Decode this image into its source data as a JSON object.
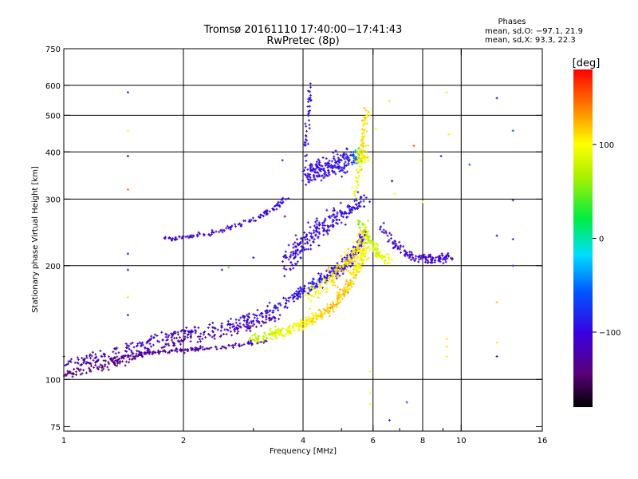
{
  "chart_data": {
    "type": "scatter",
    "title": "Tromsø 20161110 17:40:00−17:41:43",
    "subtitle": "RwPretec (8p)",
    "xlabel": "Frequency [MHz]",
    "ylabel": "Stationary phase Virtual Height [km]",
    "x_scale": "log",
    "y_scale": "log",
    "xlim": [
      1,
      16
    ],
    "ylim": [
      73,
      750
    ],
    "x_ticks": [
      1,
      2,
      4,
      6,
      8,
      10,
      16
    ],
    "x_tick_labels": [
      "1",
      "2",
      "4",
      "6",
      "8",
      "10",
      "16"
    ],
    "x_grid": [
      2,
      4,
      6,
      8,
      10
    ],
    "x_minor": [
      3,
      5,
      7,
      9
    ],
    "y_ticks": [
      75,
      100,
      200,
      300,
      400,
      500,
      600,
      750
    ],
    "y_tick_labels": [
      "75",
      "100",
      "200",
      "300",
      "400",
      "500",
      "600",
      "750"
    ],
    "y_grid": [
      100,
      200,
      300,
      400,
      500,
      600
    ],
    "grid": true,
    "legend_title": "Phases",
    "legend_lines": [
      "mean, sd,O: −97.1, 21.9",
      "mean, sd,X:  93.3, 22.3"
    ],
    "legend_placement": "top-right",
    "colorbar": {
      "label": "[deg]",
      "min": -180,
      "max": 180,
      "ticks": [
        100,
        0,
        -100
      ],
      "tick_labels": [
        "100",
        "0",
        "−100"
      ]
    },
    "series": [
      {
        "traces": [
          {
            "f": [
              1.0,
              1.1,
              1.2,
              1.35,
              1.5,
              1.7,
              1.9,
              2.1,
              2.4,
              2.7,
              3.0,
              3.3,
              3.6,
              3.9,
              4.1,
              4.3,
              4.5,
              4.7,
              4.9,
              5.1,
              5.3,
              5.5,
              5.7
            ],
            "h": [
              112,
              113,
              115,
              118,
              122,
              127,
              131,
              134,
              137,
              141,
              146,
              152,
              160,
              168,
              174,
              180,
              186,
              190,
              195,
              200,
              210,
              225,
              245
            ],
            "phase": [
              -120,
              -120,
              -120,
              -120,
              -118,
              -115,
              -112,
              -110,
              -108,
              -106,
              -104,
              -100,
              -98,
              -95,
              -92,
              -88,
              -90,
              -92,
              -93,
              -95,
              -95,
              -95,
              -95
            ],
            "n": 480,
            "sx": 0.02,
            "sy": 0.025
          },
          {
            "f": [
              1.0,
              1.1,
              1.25,
              1.4,
              1.6,
              1.8,
              2.0,
              2.3,
              2.6,
              2.9,
              3.2,
              3.5
            ],
            "h": [
              103,
              105,
              108,
              112,
              118,
              123,
              127,
              130,
              134,
              138,
              143,
              148
            ],
            "phase": [
              -140,
              -140,
              -138,
              -136,
              -132,
              -128,
              -125,
              -122,
              -120,
              -118,
              -115,
              -112
            ],
            "n": 220,
            "sx": 0.02,
            "sy": 0.02
          },
          {
            "f": [
              1.1,
              1.3,
              1.5,
              1.7,
              1.9,
              2.1,
              2.3,
              2.6,
              2.9,
              3.2
            ],
            "h": [
              110,
              113,
              116,
              118,
              119,
              120,
              121,
              122,
              124,
              126
            ],
            "phase": [
              -135,
              -135,
              -134,
              -132,
              -130,
              -128,
              -126,
              -124,
              -120,
              -115
            ],
            "n": 160,
            "sx": 0.02,
            "sy": 0.01
          },
          {
            "f": [
              3.0,
              3.3,
              3.6,
              3.9,
              4.2,
              4.5,
              4.8,
              5.0,
              5.2,
              5.4,
              5.6,
              5.75
            ],
            "h": [
              128,
              131,
              134,
              138,
              143,
              150,
              158,
              168,
              178,
              190,
              205,
              220
            ],
            "phase": [
              70,
              80,
              90,
              100,
              110,
              115,
              118,
              120,
              115,
              110,
              105,
              100
            ],
            "n": 380,
            "sx": 0.02,
            "sy": 0.025
          },
          {
            "f": [
              4.1,
              4.4,
              4.7,
              5.0,
              5.3,
              5.6,
              5.8
            ],
            "h": [
              165,
              175,
              185,
              195,
              210,
              230,
              250
            ],
            "phase": [
              90,
              100,
              110,
              115,
              110,
              105,
              100
            ],
            "n": 180,
            "sx": 0.025,
            "sy": 0.04
          },
          {
            "f": [
              3.6,
              3.8,
              4.0,
              4.3,
              4.6,
              4.9,
              5.2,
              5.5,
              5.7
            ],
            "h": [
              200,
              215,
              230,
              245,
              260,
              270,
              280,
              290,
              300
            ],
            "phase": [
              -100,
              -100,
              -98,
              -98,
              -98,
              -95,
              -95,
              -95,
              -95
            ],
            "n": 240,
            "sx": 0.03,
            "sy": 0.05
          },
          {
            "f": [
              1.8,
              2.0,
              2.2,
              2.5,
              2.8,
              3.1,
              3.4,
              3.7
            ],
            "h": [
              236,
              238,
              241,
              248,
              258,
              270,
              285,
              305
            ],
            "phase": [
              -110,
              -110,
              -108,
              -106,
              -104,
              -102,
              -100,
              -98
            ],
            "n": 120,
            "sx": 0.01,
            "sy": 0.012
          },
          {
            "f": [
              4.0,
              4.2,
              4.4,
              4.6,
              4.8,
              5.0,
              5.2,
              5.4,
              5.6,
              5.8
            ],
            "h": [
              350,
              355,
              360,
              365,
              370,
              375,
              380,
              385,
              390,
              400
            ],
            "phase": [
              -100,
              -100,
              -98,
              -98,
              -95,
              -92,
              -90,
              -60,
              100,
              110
            ],
            "n": 260,
            "sx": 0.02,
            "sy": 0.05
          },
          {
            "f": [
              4.05,
              4.1,
              4.15,
              4.2
            ],
            "h": [
              400,
              460,
              530,
              600
            ],
            "phase": [
              -95,
              -95,
              -95,
              -90
            ],
            "n": 40,
            "sx": 0.01,
            "sy": 0.05
          },
          {
            "f": [
              5.4,
              5.55,
              5.7,
              5.8
            ],
            "h": [
              300,
              380,
              450,
              520
            ],
            "phase": [
              100,
              105,
              108,
              110
            ],
            "n": 80,
            "sx": 0.015,
            "sy": 0.06
          },
          {
            "f": [
              5.5,
              5.8,
              6.0,
              6.3,
              6.6
            ],
            "h": [
              260,
              240,
              225,
              212,
              206
            ],
            "phase": [
              60,
              70,
              80,
              95,
              105
            ],
            "n": 90,
            "sx": 0.015,
            "sy": 0.03
          },
          {
            "f": [
              6.3,
              6.6,
              6.9,
              7.3,
              7.7,
              8.1,
              8.5,
              9.0,
              9.4
            ],
            "h": [
              255,
              238,
              225,
              215,
              210,
              208,
              208,
              210,
              212
            ],
            "phase": [
              -100,
              -105,
              -110,
              -110,
              -110,
              -110,
              -108,
              -106,
              -105
            ],
            "n": 140,
            "sx": 0.015,
            "sy": 0.02
          }
        ],
        "sparse": [
          {
            "f": 1.45,
            "h": 575,
            "phase": -110
          },
          {
            "f": 1.45,
            "h": 455,
            "phase": 100
          },
          {
            "f": 1.45,
            "h": 390,
            "phase": -150
          },
          {
            "f": 1.45,
            "h": 318,
            "phase": 150
          },
          {
            "f": 1.45,
            "h": 215,
            "phase": -110
          },
          {
            "f": 1.45,
            "h": 195,
            "phase": -120
          },
          {
            "f": 1.45,
            "h": 165,
            "phase": 80
          },
          {
            "f": 1.45,
            "h": 148,
            "phase": -130
          },
          {
            "f": 6.0,
            "h": 200,
            "phase": -100
          },
          {
            "f": 6.1,
            "h": 460,
            "phase": 100
          },
          {
            "f": 6.6,
            "h": 545,
            "phase": 110
          },
          {
            "f": 6.7,
            "h": 335,
            "phase": -170
          },
          {
            "f": 6.8,
            "h": 310,
            "phase": 100
          },
          {
            "f": 7.6,
            "h": 415,
            "phase": 150
          },
          {
            "f": 7.9,
            "h": 380,
            "phase": 100
          },
          {
            "f": 8.0,
            "h": 295,
            "phase": 100
          },
          {
            "f": 8.9,
            "h": 390,
            "phase": -90
          },
          {
            "f": 9.3,
            "h": 445,
            "phase": 100
          },
          {
            "f": 9.2,
            "h": 575,
            "phase": 110
          },
          {
            "f": 9.2,
            "h": 128,
            "phase": 110
          },
          {
            "f": 9.2,
            "h": 122,
            "phase": 110
          },
          {
            "f": 9.2,
            "h": 115,
            "phase": 105
          },
          {
            "f": 10.5,
            "h": 370,
            "phase": -60
          },
          {
            "f": 12.3,
            "h": 555,
            "phase": -120
          },
          {
            "f": 12.3,
            "h": 240,
            "phase": -110
          },
          {
            "f": 12.3,
            "h": 160,
            "phase": 120
          },
          {
            "f": 12.3,
            "h": 125,
            "phase": 110
          },
          {
            "f": 12.3,
            "h": 115,
            "phase": -120
          },
          {
            "f": 13.5,
            "h": 455,
            "phase": -60
          },
          {
            "f": 13.5,
            "h": 298,
            "phase": -130
          },
          {
            "f": 13.5,
            "h": 235,
            "phase": -90
          },
          {
            "f": 13.5,
            "h": 200,
            "phase": -70
          },
          {
            "f": 5.9,
            "h": 105,
            "phase": 100
          },
          {
            "f": 5.9,
            "h": 92,
            "phase": 100
          },
          {
            "f": 5.9,
            "h": 86,
            "phase": 100
          },
          {
            "f": 6.6,
            "h": 78,
            "phase": -100
          },
          {
            "f": 7.3,
            "h": 87,
            "phase": -70
          },
          {
            "f": 2.6,
            "h": 198,
            "phase": 40
          },
          {
            "f": 2.5,
            "h": 195,
            "phase": -140
          },
          {
            "f": 3.0,
            "h": 210,
            "phase": -110
          },
          {
            "f": 3.6,
            "h": 270,
            "phase": -130
          },
          {
            "f": 3.55,
            "h": 380,
            "phase": -100
          }
        ]
      }
    ]
  }
}
